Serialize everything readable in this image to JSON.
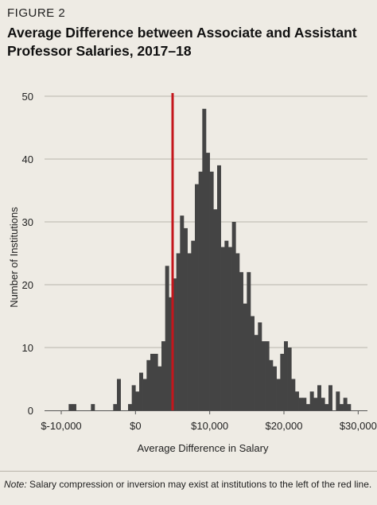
{
  "figure_label": "FIGURE 2",
  "title": "Average Difference between Associate and Assistant Professor Salaries, 2017–18",
  "note_label": "Note:",
  "note_text": " Salary compression or inversion may exist at institutions to the left of the red line.",
  "colors": {
    "bar": "#444444",
    "reference_line": "#c4161c",
    "gridline": "#b8b4ad",
    "background": "#eeebe4"
  },
  "chart_data": {
    "type": "bar",
    "title": "Average Difference between Associate and Assistant Professor Salaries, 2017–18",
    "xlabel": "Average Difference in Salary",
    "ylabel": "Number of Institutions",
    "xlim": [
      -12250,
      31250
    ],
    "ylim": [
      0,
      50
    ],
    "y_ticks": [
      0,
      10,
      20,
      30,
      40,
      50
    ],
    "x_ticks": [
      {
        "value": -10000,
        "label": "$-10,000"
      },
      {
        "value": 0,
        "label": "$0"
      },
      {
        "value": 10000,
        "label": "$10,000"
      },
      {
        "value": 20000,
        "label": "$20,000"
      },
      {
        "value": 30000,
        "label": "$30,000"
      }
    ],
    "grid": true,
    "bin_width": 500,
    "bin_starts": [
      -9000,
      -8500,
      -6000,
      -3000,
      -2500,
      -1000,
      -500,
      0,
      500,
      1000,
      1500,
      2000,
      2500,
      3000,
      3500,
      4000,
      4500,
      5000,
      5500,
      6000,
      6500,
      7000,
      7500,
      8000,
      8500,
      9000,
      9500,
      10000,
      10500,
      11000,
      11500,
      12000,
      12500,
      13000,
      13500,
      14000,
      14500,
      15000,
      15500,
      16000,
      16500,
      17000,
      17500,
      18000,
      18500,
      19000,
      19500,
      20000,
      20500,
      21000,
      21500,
      22000,
      22500,
      23000,
      23500,
      24000,
      24500,
      25000,
      25500,
      26000,
      27000,
      27500,
      28000,
      28500
    ],
    "values": [
      1,
      1,
      1,
      1,
      5,
      1,
      4,
      3,
      6,
      5,
      8,
      9,
      9,
      7,
      11,
      23,
      18,
      21,
      25,
      31,
      29,
      25,
      27,
      36,
      38,
      48,
      41,
      38,
      32,
      39,
      26,
      27,
      26,
      30,
      25,
      22,
      17,
      22,
      15,
      12,
      14,
      11,
      11,
      8,
      7,
      5,
      9,
      11,
      10,
      5,
      3,
      2,
      2,
      1,
      3,
      2,
      4,
      2,
      1,
      4,
      3,
      1,
      2,
      1
    ],
    "reference_line": {
      "x": 5000,
      "axis": "x"
    }
  }
}
